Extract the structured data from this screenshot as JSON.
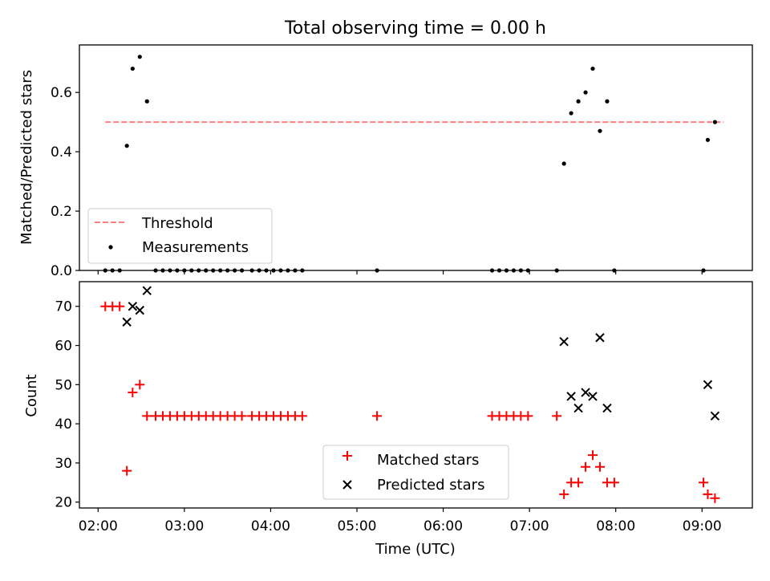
{
  "chart_data": [
    {
      "type": "scatter",
      "title": "Total observing time = 0.00 h",
      "ylabel": "Matched/Predicted stars",
      "xlabel": "",
      "xlim": [
        "01:47",
        "09:35"
      ],
      "ylim": [
        0,
        0.76
      ],
      "x_ticks": [
        "02:00",
        "03:00",
        "04:00",
        "05:00",
        "06:00",
        "07:00",
        "08:00",
        "09:00"
      ],
      "x_tick_labels_visible": false,
      "y_ticks": [
        "0.0",
        "0.2",
        "0.4",
        "0.6"
      ],
      "legend_position": "lower-left",
      "threshold": {
        "name": "Threshold",
        "value": 0.5,
        "x_range": [
          "02:05",
          "09:15"
        ],
        "color": "#ff7f7f",
        "style": "dashed"
      },
      "series": [
        {
          "name": "Measurements",
          "marker": "dot",
          "color": "#000000",
          "points": [
            [
              "02:05",
              0
            ],
            [
              "02:10",
              0
            ],
            [
              "02:15",
              0
            ],
            [
              "02:20",
              0.42
            ],
            [
              "02:24",
              0.68
            ],
            [
              "02:29",
              0.72
            ],
            [
              "02:34",
              0.57
            ],
            [
              "02:40",
              0
            ],
            [
              "02:45",
              0
            ],
            [
              "02:50",
              0
            ],
            [
              "02:55",
              0
            ],
            [
              "03:00",
              0
            ],
            [
              "03:05",
              0
            ],
            [
              "03:10",
              0
            ],
            [
              "03:15",
              0
            ],
            [
              "03:20",
              0
            ],
            [
              "03:25",
              0
            ],
            [
              "03:30",
              0
            ],
            [
              "03:35",
              0
            ],
            [
              "03:40",
              0
            ],
            [
              "03:47",
              0
            ],
            [
              "03:52",
              0
            ],
            [
              "03:57",
              0
            ],
            [
              "04:02",
              0
            ],
            [
              "04:07",
              0
            ],
            [
              "04:12",
              0
            ],
            [
              "04:17",
              0
            ],
            [
              "04:22",
              0
            ],
            [
              "05:14",
              0
            ],
            [
              "06:34",
              0
            ],
            [
              "06:39",
              0
            ],
            [
              "06:44",
              0
            ],
            [
              "06:49",
              0
            ],
            [
              "06:54",
              0
            ],
            [
              "06:59",
              0
            ],
            [
              "07:19",
              0
            ],
            [
              "07:24",
              0.36
            ],
            [
              "07:29",
              0.53
            ],
            [
              "07:34",
              0.57
            ],
            [
              "07:39",
              0.6
            ],
            [
              "07:44",
              0.68
            ],
            [
              "07:49",
              0.47
            ],
            [
              "07:54",
              0.57
            ],
            [
              "07:59",
              0
            ],
            [
              "09:01",
              0
            ],
            [
              "09:04",
              0.44
            ],
            [
              "09:09",
              0.5
            ]
          ]
        }
      ]
    },
    {
      "type": "scatter",
      "title": "",
      "ylabel": "Count",
      "xlabel": "Time (UTC)",
      "xlim": [
        "01:47",
        "09:35"
      ],
      "ylim": [
        18.5,
        76.3
      ],
      "x_ticks": [
        "02:00",
        "03:00",
        "04:00",
        "05:00",
        "06:00",
        "07:00",
        "08:00",
        "09:00"
      ],
      "y_ticks": [
        "20",
        "30",
        "40",
        "50",
        "60",
        "70"
      ],
      "legend_position": "lower-center",
      "series": [
        {
          "name": "Matched stars",
          "marker": "plus",
          "color": "#ff0000",
          "points": [
            [
              "02:05",
              70
            ],
            [
              "02:10",
              70
            ],
            [
              "02:15",
              70
            ],
            [
              "02:20",
              28
            ],
            [
              "02:24",
              48
            ],
            [
              "02:29",
              50
            ],
            [
              "02:34",
              42
            ],
            [
              "02:40",
              42
            ],
            [
              "02:45",
              42
            ],
            [
              "02:50",
              42
            ],
            [
              "02:55",
              42
            ],
            [
              "03:00",
              42
            ],
            [
              "03:05",
              42
            ],
            [
              "03:10",
              42
            ],
            [
              "03:15",
              42
            ],
            [
              "03:20",
              42
            ],
            [
              "03:25",
              42
            ],
            [
              "03:30",
              42
            ],
            [
              "03:35",
              42
            ],
            [
              "03:40",
              42
            ],
            [
              "03:47",
              42
            ],
            [
              "03:52",
              42
            ],
            [
              "03:57",
              42
            ],
            [
              "04:02",
              42
            ],
            [
              "04:07",
              42
            ],
            [
              "04:12",
              42
            ],
            [
              "04:17",
              42
            ],
            [
              "04:22",
              42
            ],
            [
              "05:14",
              42
            ],
            [
              "06:34",
              42
            ],
            [
              "06:39",
              42
            ],
            [
              "06:44",
              42
            ],
            [
              "06:49",
              42
            ],
            [
              "06:54",
              42
            ],
            [
              "06:59",
              42
            ],
            [
              "07:19",
              42
            ],
            [
              "07:24",
              22
            ],
            [
              "07:29",
              25
            ],
            [
              "07:34",
              25
            ],
            [
              "07:39",
              29
            ],
            [
              "07:44",
              32
            ],
            [
              "07:49",
              29
            ],
            [
              "07:54",
              25
            ],
            [
              "07:59",
              25
            ],
            [
              "09:01",
              25
            ],
            [
              "09:04",
              22
            ],
            [
              "09:09",
              21
            ]
          ]
        },
        {
          "name": "Predicted stars",
          "marker": "x",
          "color": "#000000",
          "points": [
            [
              "02:20",
              66
            ],
            [
              "02:24",
              70
            ],
            [
              "02:29",
              69
            ],
            [
              "02:34",
              74
            ],
            [
              "07:24",
              61
            ],
            [
              "07:29",
              47
            ],
            [
              "07:34",
              44
            ],
            [
              "07:39",
              48
            ],
            [
              "07:44",
              47
            ],
            [
              "07:49",
              62
            ],
            [
              "07:54",
              44
            ],
            [
              "09:04",
              50
            ],
            [
              "09:09",
              42
            ]
          ]
        }
      ]
    }
  ]
}
